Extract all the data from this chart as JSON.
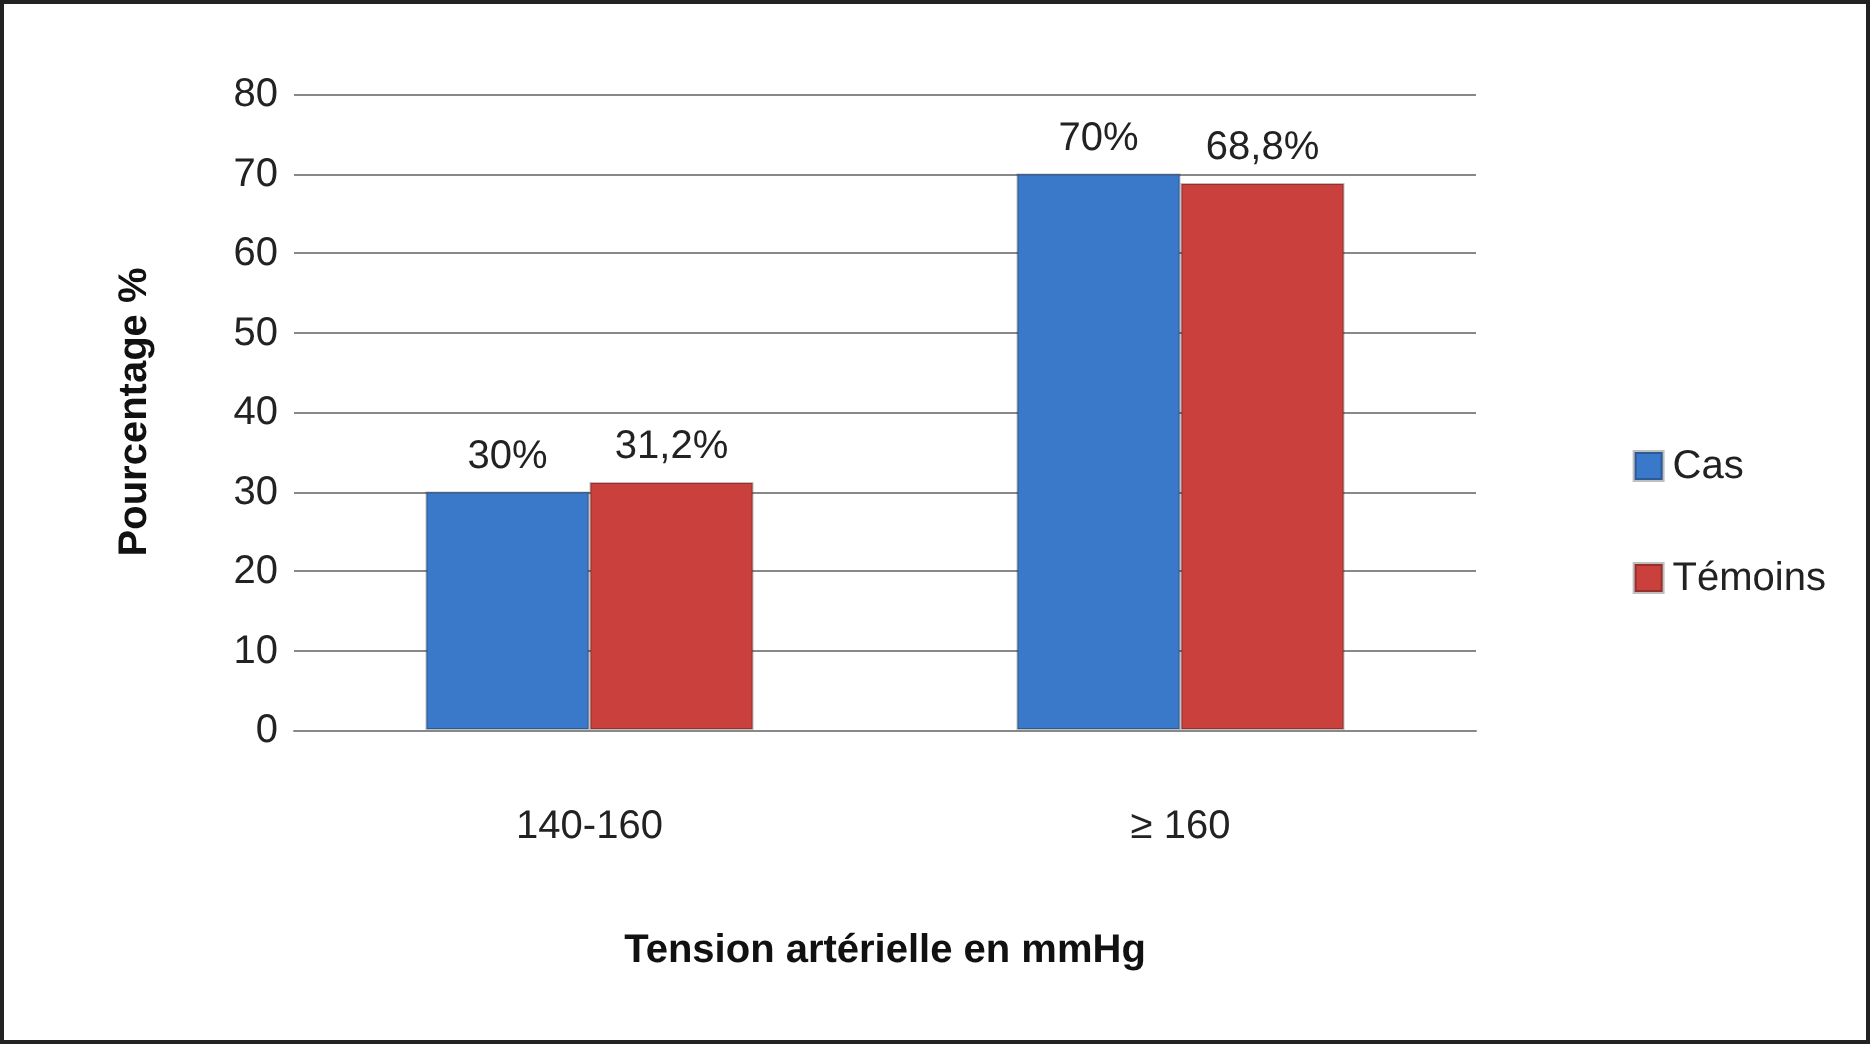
{
  "chart_data": {
    "type": "bar",
    "xlabel": "Tension artérielle en mmHg",
    "ylabel": "Pourcentage %",
    "categories": [
      "140-160",
      "≥ 160"
    ],
    "series": [
      {
        "name": "Cas",
        "color": "#3a78c9",
        "values": [
          30,
          70
        ],
        "value_labels": [
          "30%",
          "70%"
        ]
      },
      {
        "name": "Témoins",
        "color": "#c9403d",
        "values": [
          31.2,
          68.8
        ],
        "value_labels": [
          "31,2%",
          "68,8%"
        ]
      }
    ],
    "ylim": [
      0,
      80
    ],
    "yticks": [
      0,
      10,
      20,
      30,
      40,
      50,
      60,
      70,
      80
    ],
    "grid": "y",
    "legend": "right"
  }
}
